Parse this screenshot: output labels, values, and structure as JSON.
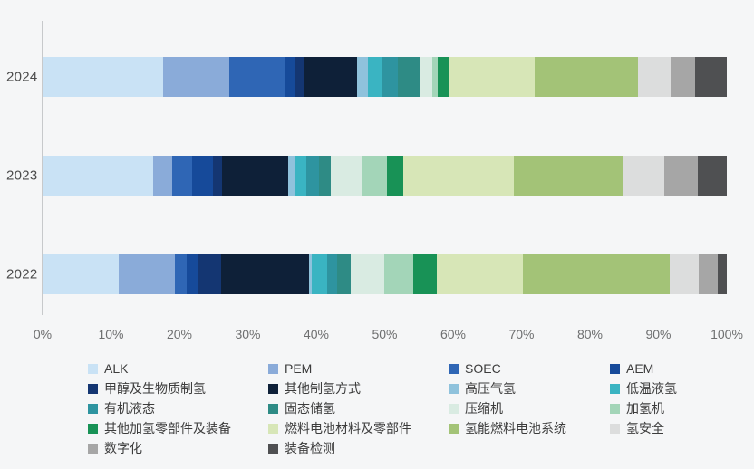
{
  "chart_data": {
    "type": "bar",
    "variant": "horizontal-stacked",
    "title": "",
    "xlabel": "",
    "ylabel": "",
    "unit": "%",
    "grid": "off",
    "legend_position": "bottom",
    "x_axis": {
      "min": 0,
      "max": 100,
      "tick_labels": [
        "0%",
        "10%",
        "20%",
        "30%",
        "40%",
        "50%",
        "60%",
        "70%",
        "80%",
        "90%",
        "100%"
      ]
    },
    "y_categories": [
      "2024",
      "2023",
      "2022"
    ],
    "segments": [
      {
        "label": "ALK",
        "color": "#c9e2f5"
      },
      {
        "label": "PEM",
        "color": "#8aabd9"
      },
      {
        "label": "SOEC",
        "color": "#2f66b5"
      },
      {
        "label": "AEM",
        "color": "#164a9a"
      },
      {
        "label": "甲醇及生物质制氢",
        "color": "#143672"
      },
      {
        "label": "其他制氢方式",
        "color": "#0e2038"
      },
      {
        "label": "高压气氢",
        "color": "#8fc2dc"
      },
      {
        "label": "低温液氢",
        "color": "#3ab4c2"
      },
      {
        "label": "有机液态",
        "color": "#2e94a0"
      },
      {
        "label": "固态储氢",
        "color": "#2e8b85"
      },
      {
        "label": "压缩机",
        "color": "#d9ebe2"
      },
      {
        "label": "加氢机",
        "color": "#a3d5b8"
      },
      {
        "label": "其他加氢零部件及装备",
        "color": "#189256"
      },
      {
        "label": "燃料电池材料及零部件",
        "color": "#d7e6b7"
      },
      {
        "label": "氢能燃料电池系统",
        "color": "#a3c377"
      },
      {
        "label": "氢安全",
        "color": "#dcdddd"
      },
      {
        "label": "数字化",
        "color": "#a6a6a6"
      },
      {
        "label": "装备检测",
        "color": "#4f5052"
      }
    ],
    "series": [
      {
        "name": "2024",
        "values": [
          17.6,
          9.7,
          8.2,
          1.4,
          1.4,
          7.6,
          1.6,
          2.0,
          2.4,
          3.4,
          1.6,
          0.9,
          1.5,
          12.6,
          15.1,
          4.8,
          3.6,
          4.6
        ]
      },
      {
        "name": "2023",
        "values": [
          16.2,
          2.8,
          2.9,
          3.0,
          1.3,
          9.7,
          0.9,
          1.7,
          1.9,
          1.7,
          4.6,
          3.7,
          2.3,
          16.2,
          15.9,
          6.1,
          4.9,
          4.2
        ]
      },
      {
        "name": "2022",
        "values": [
          11.1,
          8.3,
          1.7,
          1.7,
          3.3,
          12.8,
          0.5,
          2.2,
          1.5,
          1.9,
          5.0,
          4.2,
          3.4,
          12.6,
          21.5,
          4.2,
          2.8,
          1.3
        ]
      }
    ]
  }
}
